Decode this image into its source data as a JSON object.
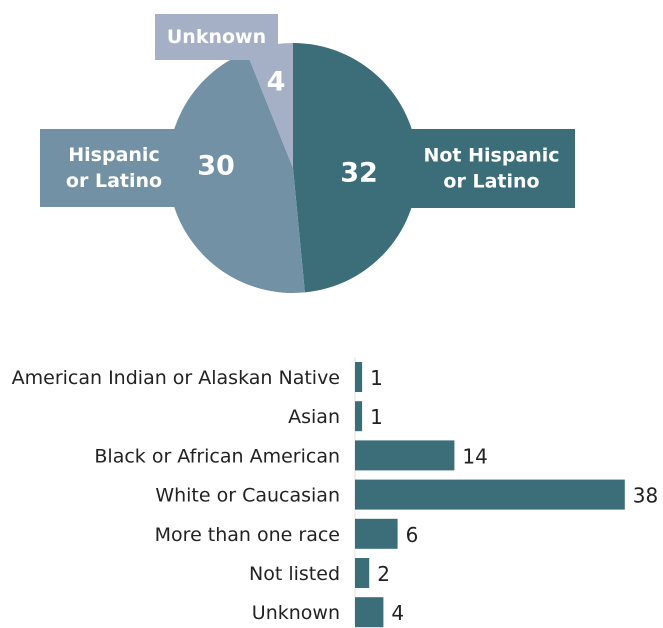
{
  "colors": {
    "not_hispanic": "#3b6e79",
    "hispanic": "#7391a4",
    "unknown": "#a5b0c6",
    "bar": "#3b6e79",
    "text": "#222222",
    "label_text": "#ffffff"
  },
  "chart_data": [
    {
      "type": "pie",
      "slices": [
        {
          "label_lines": [
            "Not Hispanic",
            "or Latino"
          ],
          "value": 32,
          "color": "#3b6e79"
        },
        {
          "label_lines": [
            "Hispanic",
            "or Latino"
          ],
          "value": 30,
          "color": "#7391a4"
        },
        {
          "label_lines": [
            "Unknown"
          ],
          "value": 4,
          "color": "#a5b0c6"
        }
      ]
    },
    {
      "type": "bar",
      "orientation": "horizontal",
      "categories": [
        "American Indian or Alaskan Native",
        "Asian",
        "Black or African American",
        "White or Caucasian",
        "More than one race",
        "Not listed",
        "Unknown"
      ],
      "values": [
        1,
        1,
        14,
        38,
        6,
        2,
        4
      ],
      "color": "#3b6e79"
    }
  ]
}
